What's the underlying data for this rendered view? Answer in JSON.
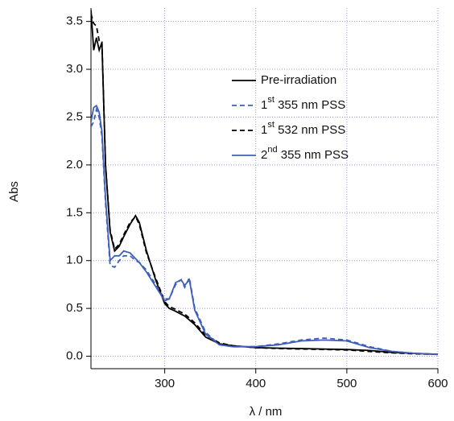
{
  "chart_data": {
    "type": "line",
    "x_label": "λ / nm",
    "y_label": "Abs",
    "xlim": [
      219,
      600
    ],
    "ylim": [
      -0.13,
      3.64
    ],
    "xticks": [
      300,
      400,
      500,
      600
    ],
    "yticks": [
      {
        "value": 0,
        "label": "0.0"
      },
      0.5,
      {
        "value": 1,
        "label": "1.0"
      },
      1.5,
      {
        "value": 2,
        "label": "2.0"
      },
      2.5,
      {
        "value": 3,
        "label": "3.0"
      },
      3.5
    ],
    "grid": true,
    "legend": "upper center",
    "x": [
      219,
      222,
      225,
      228,
      231,
      235,
      240,
      245,
      250,
      255,
      262,
      268,
      272,
      280,
      290,
      300,
      305,
      312,
      318,
      322,
      327,
      333,
      345,
      360,
      375,
      400,
      425,
      450,
      475,
      500,
      525,
      550,
      575,
      600
    ],
    "series": [
      {
        "name": "Pre-irradiation",
        "color": "#000000",
        "dash": false,
        "values": [
          3.62,
          3.2,
          3.33,
          3.2,
          3.28,
          2.0,
          1.3,
          1.1,
          1.15,
          1.25,
          1.38,
          1.47,
          1.4,
          1.1,
          0.8,
          0.55,
          0.5,
          0.47,
          0.44,
          0.42,
          0.38,
          0.33,
          0.2,
          0.13,
          0.11,
          0.09,
          0.085,
          0.08,
          0.075,
          0.07,
          0.06,
          0.04,
          0.03,
          0.02
        ]
      },
      {
        "name": "1st 355 nm PSS",
        "color": "#3f5fb8",
        "dash": true,
        "values": [
          2.4,
          2.45,
          2.58,
          2.5,
          2.3,
          1.6,
          0.95,
          0.93,
          1.0,
          1.05,
          1.05,
          1.0,
          0.98,
          0.9,
          0.75,
          0.6,
          0.6,
          0.75,
          0.8,
          0.72,
          0.82,
          0.5,
          0.25,
          0.12,
          0.1,
          0.1,
          0.13,
          0.17,
          0.19,
          0.17,
          0.1,
          0.05,
          0.03,
          0.02
        ]
      },
      {
        "name": "1st 532 nm PSS",
        "color": "#000000",
        "dash": true,
        "values": [
          3.58,
          3.48,
          3.45,
          3.3,
          3.3,
          2.0,
          1.32,
          1.12,
          1.17,
          1.27,
          1.4,
          1.46,
          1.38,
          1.08,
          0.82,
          0.57,
          0.52,
          0.49,
          0.46,
          0.44,
          0.4,
          0.35,
          0.22,
          0.14,
          0.11,
          0.09,
          0.08,
          0.075,
          0.07,
          0.065,
          0.05,
          0.035,
          0.025,
          0.02
        ]
      },
      {
        "name": "2nd 355 nm PSS",
        "color": "#3f5fb8",
        "dash": false,
        "values": [
          2.45,
          2.6,
          2.62,
          2.55,
          2.35,
          1.65,
          1.0,
          1.05,
          1.05,
          1.1,
          1.08,
          1.02,
          0.98,
          0.88,
          0.73,
          0.58,
          0.6,
          0.77,
          0.8,
          0.74,
          0.8,
          0.48,
          0.23,
          0.12,
          0.1,
          0.1,
          0.12,
          0.16,
          0.17,
          0.16,
          0.09,
          0.05,
          0.03,
          0.02
        ]
      }
    ]
  }
}
